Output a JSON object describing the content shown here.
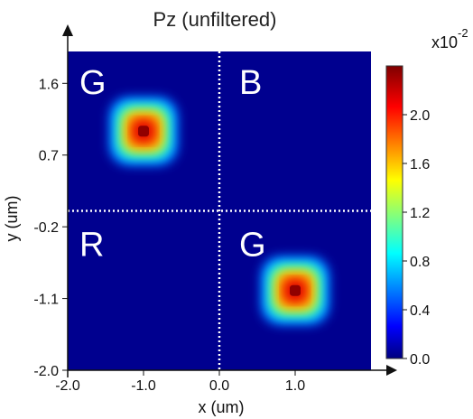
{
  "chart_data": {
    "type": "heatmap",
    "title": "Pz (unfiltered)",
    "xlabel": "x (um)",
    "ylabel": "y (um)",
    "xlim": [
      -2.0,
      2.0
    ],
    "ylim": [
      -2.0,
      2.0
    ],
    "x_ticks": [
      "-2.0",
      "-1.0",
      "0.0",
      "1.0"
    ],
    "x_tick_values": [
      -2.0,
      -1.0,
      0.0,
      1.0
    ],
    "y_ticks": [
      "1.6",
      "0.7",
      "-0.2",
      "-1.1",
      "-2.0"
    ],
    "y_tick_values": [
      1.6,
      0.7,
      -0.2,
      -1.1,
      -2.0
    ],
    "colorbar": {
      "ticks": [
        "2.0",
        "1.6",
        "1.2",
        "0.8",
        "0.4",
        "0.0"
      ],
      "tick_values": [
        2.0,
        1.6,
        1.2,
        0.8,
        0.4,
        0.0
      ],
      "range": [
        0.0,
        2.4
      ],
      "multiplier": "x10",
      "exponent": "-2",
      "colormap": "jet"
    },
    "peaks": [
      {
        "x": -1.0,
        "y": 1.0,
        "value": 2.4
      },
      {
        "x": 1.0,
        "y": -1.0,
        "value": 2.4
      }
    ],
    "divider_lines": {
      "x": 0.0,
      "y": 0.0,
      "style": "dotted",
      "color": "#ffffff"
    },
    "quadrant_labels": [
      {
        "text": "G",
        "quadrant": "top-left"
      },
      {
        "text": "B",
        "quadrant": "top-right"
      },
      {
        "text": "R",
        "quadrant": "bottom-left"
      },
      {
        "text": "G",
        "quadrant": "bottom-right"
      }
    ],
    "background_color": "#00008f"
  }
}
